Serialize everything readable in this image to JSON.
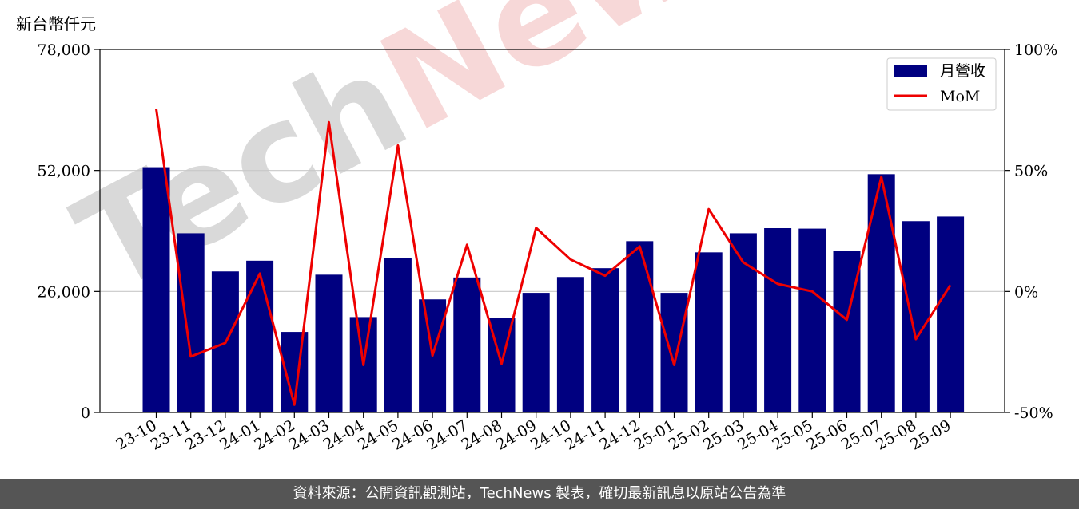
{
  "unit_label": "新台幣仟元",
  "footer_text": "資料來源：公開資訊觀測站，TechNews 製表，確切最新訊息以原站公告為準",
  "watermark": "TechNews",
  "colors": {
    "bar": "#000080",
    "line": "#ee0000",
    "watermark_gray": "#d9d9d9",
    "watermark_pink": "#f7d8d8",
    "footer_bg": "#555555"
  },
  "chart_data": {
    "type": "bar",
    "categories": [
      "23-10",
      "23-11",
      "23-12",
      "24-01",
      "24-02",
      "24-03",
      "24-04",
      "24-05",
      "24-06",
      "24-07",
      "24-08",
      "24-09",
      "24-10",
      "24-11",
      "24-12",
      "25-01",
      "25-02",
      "25-03",
      "25-04",
      "25-05",
      "25-06",
      "25-07",
      "25-08",
      "25-09"
    ],
    "series": [
      {
        "name": "月營收",
        "type": "bar",
        "axis": "left",
        "values": [
          52700,
          38500,
          30300,
          32600,
          17300,
          29600,
          20500,
          33100,
          24300,
          29000,
          20300,
          25700,
          29100,
          31000,
          36800,
          25700,
          34400,
          38500,
          39600,
          39500,
          34800,
          51200,
          41100,
          42100
        ]
      },
      {
        "name": "MoM",
        "type": "line",
        "axis": "right",
        "values": [
          75.4,
          -26.9,
          -21.3,
          7.4,
          -46.8,
          69.9,
          -30.4,
          60.3,
          -26.5,
          19.3,
          -29.9,
          26.3,
          13.2,
          6.5,
          18.6,
          -30.4,
          34.0,
          12.0,
          3.1,
          0.0,
          -11.7,
          47.3,
          -19.7,
          2.6
        ]
      }
    ],
    "ylim_left": [
      0,
      78000
    ],
    "yticks_left": [
      "0",
      "26,000",
      "52,000",
      "78,000"
    ],
    "ylim_right": [
      -50,
      100
    ],
    "yticks_right": [
      "-50%",
      "0%",
      "50%",
      "100%"
    ],
    "grid": "horizontal",
    "legend": "top-right"
  }
}
